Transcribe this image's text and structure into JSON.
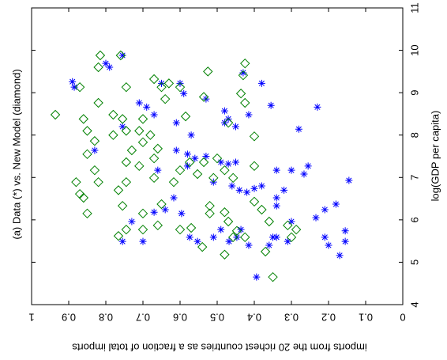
{
  "chart_data": {
    "type": "scatter",
    "title": "(a) Data (*) vs. New Model (diamond)",
    "x_label": "log(GDP per capita)",
    "y_label": "imports from the 20 richest countries as a fraction of total imports",
    "xlim": [
      4,
      11
    ],
    "xticks": [
      4,
      5,
      6,
      7,
      8,
      9,
      10,
      11
    ],
    "ylim": [
      0,
      1
    ],
    "yticks": [
      0,
      0.1,
      0.2,
      0.3,
      0.4,
      0.5,
      0.6,
      0.7,
      0.8,
      0.9,
      1
    ],
    "series": [
      {
        "color": "#0000ff",
        "marker": "star",
        "x": [
          9.88,
          9.69,
          9.6,
          9.26,
          9.13,
          9.22,
          9.22,
          8.98,
          9.47,
          9.22,
          8.7,
          8.85,
          8.57,
          8.38,
          8.29,
          8.2,
          8.48,
          8.14,
          8.66,
          8.66,
          8.76,
          8.48,
          8.2,
          7.64,
          8.29,
          8.0,
          7.64,
          7.55,
          7.5,
          7.45,
          7.27,
          7.36,
          7.32,
          7.36,
          7.17,
          7.17,
          7.17,
          7.27,
          7.08,
          6.93,
          6.89,
          6.8,
          6.7,
          6.74,
          6.8,
          6.65,
          6.52,
          6.33,
          6.7,
          5.96,
          6.24,
          6.37,
          6.05,
          5.59,
          5.74,
          5.49,
          5.16,
          5.4,
          5.49,
          5.59,
          5.59,
          5.4,
          4.65,
          5.4,
          5.77,
          5.59,
          5.49,
          5.77,
          5.59,
          5.49,
          5.59,
          6.15,
          6.24,
          6.18,
          5.49,
          5.96,
          5.49,
          6.52
        ],
        "values": [
          0.755,
          0.8,
          0.79,
          0.89,
          0.885,
          0.65,
          0.6,
          0.59,
          0.43,
          0.38,
          0.355,
          0.53,
          0.48,
          0.47,
          0.48,
          0.45,
          0.415,
          0.28,
          0.23,
          0.69,
          0.71,
          0.67,
          0.755,
          0.83,
          0.61,
          0.57,
          0.61,
          0.58,
          0.53,
          0.56,
          0.58,
          0.49,
          0.47,
          0.45,
          0.66,
          0.34,
          0.3,
          0.255,
          0.266,
          0.145,
          0.51,
          0.46,
          0.44,
          0.4,
          0.38,
          0.42,
          0.34,
          0.34,
          0.32,
          0.3,
          0.21,
          0.18,
          0.234,
          0.21,
          0.155,
          0.155,
          0.17,
          0.2,
          0.31,
          0.34,
          0.35,
          0.36,
          0.394,
          0.415,
          0.436,
          0.447,
          0.468,
          0.49,
          0.51,
          0.553,
          0.574,
          0.596,
          0.64,
          0.67,
          0.7,
          0.73,
          0.755,
          0.617
        ]
      },
      {
        "color": "#008000",
        "marker": "diamond",
        "x": [
          9.88,
          9.88,
          9.6,
          9.32,
          9.22,
          9.5,
          9.69,
          9.41,
          9.13,
          9.13,
          9.13,
          9.13,
          8.76,
          8.85,
          8.9,
          8.98,
          8.76,
          8.48,
          8.38,
          8.48,
          8.38,
          8.38,
          8.1,
          8.0,
          8.44,
          8.29,
          7.97,
          8.1,
          7.86,
          8.0,
          8.1,
          7.83,
          7.68,
          7.64,
          7.55,
          7.17,
          7.36,
          7.27,
          7.45,
          7.36,
          7.36,
          7.45,
          7.17,
          7.27,
          6.99,
          6.99,
          7.08,
          7.17,
          6.89,
          6.99,
          6.89,
          6.7,
          6.89,
          6.89,
          6.61,
          6.52,
          6.15,
          6.33,
          6.15,
          6.37,
          5.87,
          5.77,
          5.62,
          5.77,
          5.77,
          5.81,
          6.33,
          6.18,
          5.96,
          5.74,
          5.59,
          5.36,
          5.18,
          6.15,
          6.43,
          6.24,
          5.96,
          4.65,
          5.25,
          5.87,
          5.77,
          5.59,
          5.59
        ],
        "values": [
          0.815,
          0.76,
          0.82,
          0.67,
          0.63,
          0.525,
          0.425,
          0.43,
          0.6,
          0.65,
          0.745,
          0.87,
          0.82,
          0.64,
          0.536,
          0.436,
          0.425,
          0.936,
          0.86,
          0.78,
          0.755,
          0.7,
          0.71,
          0.68,
          0.585,
          0.47,
          0.4,
          0.85,
          0.83,
          0.78,
          0.745,
          0.7,
          0.66,
          0.73,
          0.85,
          0.83,
          0.745,
          0.71,
          0.67,
          0.574,
          0.536,
          0.5,
          0.48,
          0.4,
          0.457,
          0.51,
          0.553,
          0.6,
          0.617,
          0.67,
          0.745,
          0.766,
          0.82,
          0.88,
          0.87,
          0.86,
          0.85,
          0.755,
          0.7,
          0.65,
          0.66,
          0.7,
          0.766,
          0.745,
          0.6,
          0.57,
          0.52,
          0.48,
          0.47,
          0.447,
          0.457,
          0.54,
          0.48,
          0.52,
          0.4,
          0.38,
          0.36,
          0.35,
          0.37,
          0.31,
          0.287,
          0.3,
          0.425
        ]
      }
    ]
  }
}
